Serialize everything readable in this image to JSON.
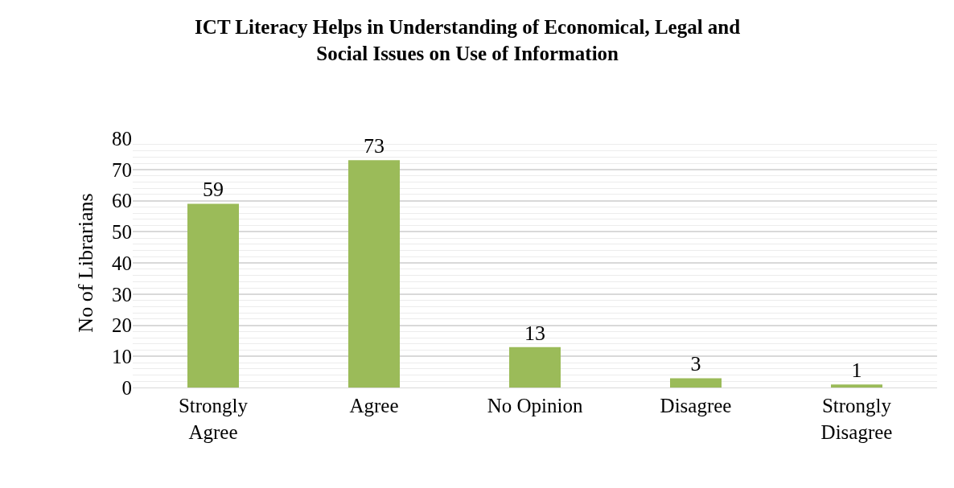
{
  "chart_data": {
    "type": "bar",
    "title": "ICT Literacy Helps in Understanding of Economical, Legal and\nSocial Issues on Use of Information",
    "ylabel": "No of Librarians",
    "categories": [
      "Strongly\nAgree",
      "Agree",
      "No Opinion",
      "Disagree",
      "Strongly\nDisagree"
    ],
    "values": [
      59,
      73,
      13,
      3,
      1
    ],
    "color": "#9bbb59",
    "ylim": [
      0,
      80
    ],
    "yticks": [
      0,
      10,
      20,
      30,
      40,
      50,
      60,
      70,
      80
    ],
    "grid": "y",
    "data_labels": true
  }
}
